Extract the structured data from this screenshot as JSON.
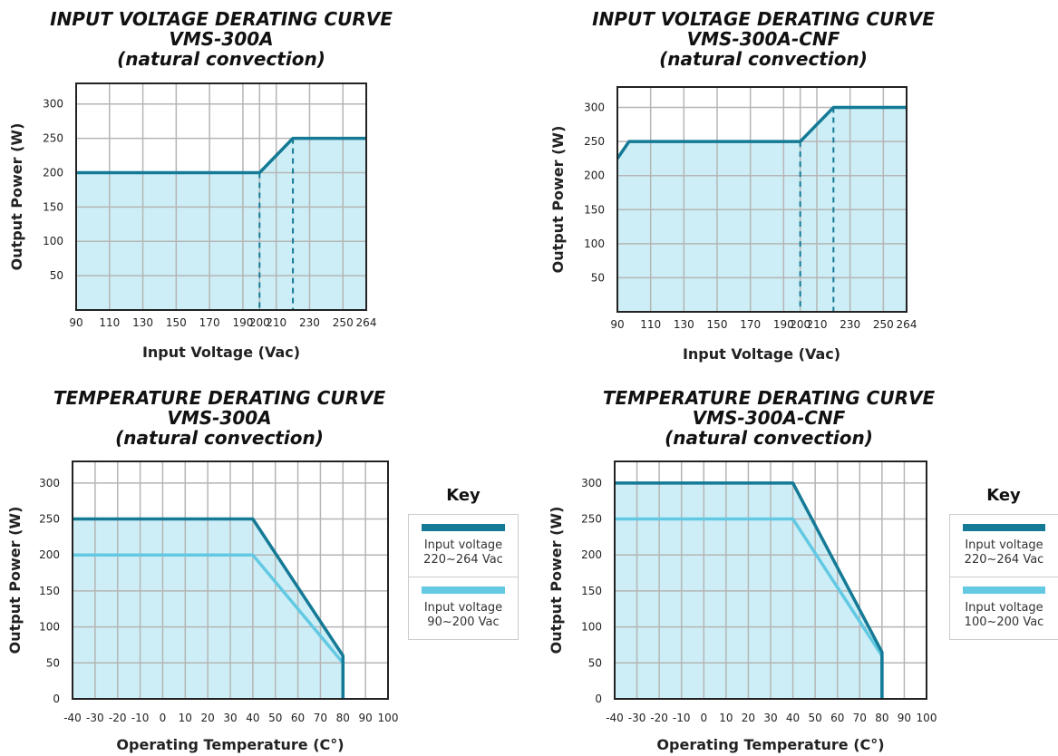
{
  "colors": {
    "dark": "#147a96",
    "light": "#63c9e3",
    "fill": "#cdeef6",
    "grid": "#b5b5b5",
    "frame": "#222222"
  },
  "chart_data": [
    {
      "type": "area",
      "title_lines": [
        "INPUT VOLTAGE DERATING CURVE",
        "VMS-300A",
        "(natural convection)"
      ],
      "xlabel": "Input Voltage (Vac)",
      "ylabel": "Output Power (W)",
      "xlim": [
        90,
        264
      ],
      "ylim": [
        0,
        330
      ],
      "x_ticks": [
        90,
        110,
        130,
        150,
        170,
        190,
        200,
        210,
        230,
        250,
        264
      ],
      "y_ticks": [
        50,
        100,
        150,
        200,
        250,
        300
      ],
      "series": [
        {
          "x": [
            90,
            200,
            220,
            264
          ],
          "y": [
            200,
            200,
            250,
            250
          ]
        }
      ],
      "reference_lines_x": [
        200,
        220
      ]
    },
    {
      "type": "area",
      "title_lines": [
        "INPUT VOLTAGE DERATING CURVE",
        "VMS-300A-CNF",
        "(natural convection)"
      ],
      "xlabel": "Input Voltage (Vac)",
      "ylabel": "Output Power (W)",
      "xlim": [
        90,
        264
      ],
      "ylim": [
        0,
        330
      ],
      "x_ticks": [
        90,
        110,
        130,
        150,
        170,
        190,
        200,
        210,
        230,
        250,
        264
      ],
      "y_ticks": [
        50,
        100,
        150,
        200,
        250,
        300
      ],
      "series": [
        {
          "x": [
            90,
            97,
            200,
            220,
            264
          ],
          "y": [
            225,
            250,
            250,
            300,
            300
          ]
        }
      ],
      "reference_lines_x": [
        200,
        220
      ]
    },
    {
      "type": "area",
      "title_lines": [
        "TEMPERATURE DERATING CURVE",
        "VMS-300A",
        "(natural convection)"
      ],
      "xlabel": "Operating Temperature (C°)",
      "ylabel": "Output Power (W)",
      "xlim": [
        -40,
        100
      ],
      "ylim": [
        0,
        330
      ],
      "x_ticks": [
        -40,
        -30,
        -20,
        -10,
        0,
        10,
        20,
        30,
        40,
        50,
        60,
        70,
        80,
        90,
        100
      ],
      "y_ticks": [
        0,
        50,
        100,
        150,
        200,
        250,
        300
      ],
      "series": [
        {
          "x": [
            -40,
            40,
            80,
            80
          ],
          "y": [
            250,
            250,
            60,
            0
          ],
          "style": "dark"
        },
        {
          "x": [
            -40,
            40,
            80,
            80
          ],
          "y": [
            200,
            200,
            50,
            0
          ],
          "style": "light"
        }
      ],
      "legend": {
        "title": "Key",
        "entries": [
          {
            "style": "dark",
            "lines": [
              "Input voltage",
              "220~264 Vac"
            ]
          },
          {
            "style": "light",
            "lines": [
              "Input voltage",
              "90~200 Vac"
            ]
          }
        ]
      }
    },
    {
      "type": "area",
      "title_lines": [
        "TEMPERATURE DERATING CURVE",
        "VMS-300A-CNF",
        "(natural convection)"
      ],
      "xlabel": "Operating Temperature (C°)",
      "ylabel": "Output Power (W)",
      "xlim": [
        -40,
        100
      ],
      "ylim": [
        0,
        330
      ],
      "x_ticks": [
        -40,
        -30,
        -20,
        -10,
        0,
        10,
        20,
        30,
        40,
        50,
        60,
        70,
        80,
        90,
        100
      ],
      "y_ticks": [
        0,
        50,
        100,
        150,
        200,
        250,
        300
      ],
      "series": [
        {
          "x": [
            -40,
            40,
            80,
            80
          ],
          "y": [
            300,
            300,
            65,
            0
          ],
          "style": "dark"
        },
        {
          "x": [
            -40,
            40,
            80,
            80
          ],
          "y": [
            250,
            250,
            60,
            0
          ],
          "style": "light"
        }
      ],
      "legend": {
        "title": "Key",
        "entries": [
          {
            "style": "dark",
            "lines": [
              "Input voltage",
              "220~264 Vac"
            ]
          },
          {
            "style": "light",
            "lines": [
              "Input voltage",
              "100~200 Vac"
            ]
          }
        ]
      }
    }
  ]
}
